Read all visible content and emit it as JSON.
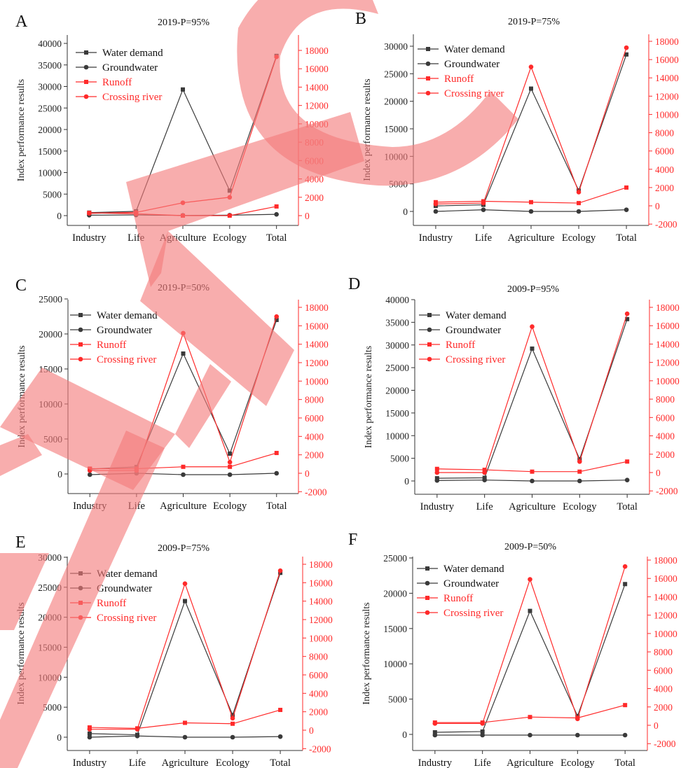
{
  "figure": {
    "y_left_label": "Index performance results",
    "categories": [
      "Industry",
      "Life",
      "Agriculture",
      "Ecology",
      "Total"
    ],
    "legend": [
      "Water demand",
      "Groundwater",
      "Runoff",
      "Crossing river"
    ],
    "colors": {
      "left_axis": "#333333",
      "right_axis": "#ff2a2a",
      "left_series": "#3a3a3a",
      "right_series": "#ff2a2a"
    }
  },
  "watermark": {
    "text": "RET",
    "color": "#f47a7a"
  },
  "chart_data": [
    {
      "panel_letter": "A",
      "title": "2019-P=95%",
      "type": "line",
      "categories": [
        "Industry",
        "Life",
        "Agriculture",
        "Ecology",
        "Total"
      ],
      "ylim_left": [
        0,
        40000
      ],
      "yticks_left": [
        0,
        5000,
        10000,
        15000,
        20000,
        25000,
        30000,
        35000,
        40000
      ],
      "ylim_right": [
        0,
        18000
      ],
      "yticks_right": [
        0,
        2000,
        4000,
        6000,
        8000,
        10000,
        12000,
        14000,
        16000,
        18000
      ],
      "series": [
        {
          "name": "Water demand",
          "axis": "left",
          "marker": "square",
          "values": [
            700,
            1000,
            29300,
            5800,
            37100
          ]
        },
        {
          "name": "Groundwater",
          "axis": "left",
          "marker": "circle",
          "values": [
            100,
            150,
            50,
            100,
            300
          ]
        },
        {
          "name": "Runoff",
          "axis": "right",
          "marker": "square",
          "values": [
            300,
            200,
            0,
            0,
            1000
          ]
        },
        {
          "name": "Crossing river",
          "axis": "right",
          "marker": "circle",
          "values": [
            250,
            350,
            1400,
            2000,
            17300
          ]
        }
      ]
    },
    {
      "panel_letter": "B",
      "title": "2019-P=75%",
      "type": "line",
      "categories": [
        "Industry",
        "Life",
        "Agriculture",
        "Ecology",
        "Total"
      ],
      "ylim_left": [
        -2000,
        30000
      ],
      "yticks_left": [
        0,
        5000,
        10000,
        15000,
        20000,
        25000,
        30000
      ],
      "ylim_right": [
        -2000,
        18000
      ],
      "yticks_right": [
        -2000,
        0,
        2000,
        4000,
        6000,
        8000,
        10000,
        12000,
        14000,
        16000,
        18000
      ],
      "series": [
        {
          "name": "Water demand",
          "axis": "left",
          "marker": "square",
          "values": [
            1000,
            1200,
            22300,
            3800,
            28500
          ]
        },
        {
          "name": "Groundwater",
          "axis": "left",
          "marker": "circle",
          "values": [
            0,
            300,
            0,
            0,
            300
          ]
        },
        {
          "name": "Runoff",
          "axis": "right",
          "marker": "square",
          "values": [
            400,
            500,
            400,
            300,
            2000
          ]
        },
        {
          "name": "Crossing river",
          "axis": "right",
          "marker": "circle",
          "values": [
            200,
            300,
            15200,
            1500,
            17300
          ]
        }
      ]
    },
    {
      "panel_letter": "C",
      "title": "2019-P=50%",
      "type": "line",
      "categories": [
        "Industry",
        "Life",
        "Agriculture",
        "Ecology",
        "Total"
      ],
      "ylim_left": [
        -2500,
        25000
      ],
      "yticks_left": [
        0,
        5000,
        10000,
        15000,
        20000,
        25000
      ],
      "ylim_right": [
        -2000,
        18000
      ],
      "yticks_right": [
        -2000,
        0,
        2000,
        4000,
        6000,
        8000,
        10000,
        12000,
        14000,
        16000,
        18000
      ],
      "series": [
        {
          "name": "Water demand",
          "axis": "left",
          "marker": "square",
          "values": [
            700,
            1000,
            17200,
            2900,
            22000
          ]
        },
        {
          "name": "Groundwater",
          "axis": "left",
          "marker": "circle",
          "values": [
            -100,
            100,
            -100,
            -100,
            100
          ]
        },
        {
          "name": "Runoff",
          "axis": "right",
          "marker": "square",
          "values": [
            500,
            500,
            700,
            700,
            2200
          ]
        },
        {
          "name": "Crossing river",
          "axis": "right",
          "marker": "circle",
          "values": [
            300,
            300,
            15200,
            1200,
            17000
          ]
        }
      ]
    },
    {
      "panel_letter": "D",
      "title": "2009-P=95%",
      "type": "line",
      "categories": [
        "Industry",
        "Life",
        "Agriculture",
        "Ecology",
        "Total"
      ],
      "ylim_left": [
        -2000,
        40000
      ],
      "yticks_left": [
        0,
        5000,
        10000,
        15000,
        20000,
        25000,
        30000,
        35000,
        40000
      ],
      "ylim_right": [
        -2000,
        18000
      ],
      "yticks_right": [
        -2000,
        0,
        2000,
        4000,
        6000,
        8000,
        10000,
        12000,
        14000,
        16000,
        18000
      ],
      "series": [
        {
          "name": "Water demand",
          "axis": "left",
          "marker": "square",
          "values": [
            600,
            700,
            29200,
            4800,
            35700
          ]
        },
        {
          "name": "Groundwater",
          "axis": "left",
          "marker": "circle",
          "values": [
            100,
            200,
            0,
            0,
            200
          ]
        },
        {
          "name": "Runoff",
          "axis": "right",
          "marker": "square",
          "values": [
            400,
            300,
            100,
            100,
            1200
          ]
        },
        {
          "name": "Crossing river",
          "axis": "right",
          "marker": "circle",
          "values": [
            0,
            0,
            15900,
            1200,
            17300
          ]
        }
      ]
    },
    {
      "panel_letter": "E",
      "title": "2009-P=75%",
      "type": "line",
      "categories": [
        "Industry",
        "Life",
        "Agriculture",
        "Ecology",
        "Total"
      ],
      "ylim_left": [
        -2000,
        30000
      ],
      "yticks_left": [
        0,
        5000,
        10000,
        15000,
        20000,
        25000,
        30000
      ],
      "ylim_right": [
        -2000,
        18000
      ],
      "yticks_right": [
        -2000,
        0,
        2000,
        4000,
        6000,
        8000,
        10000,
        12000,
        14000,
        16000,
        18000
      ],
      "series": [
        {
          "name": "Water demand",
          "axis": "left",
          "marker": "square",
          "values": [
            600,
            400,
            22700,
            3700,
            27400
          ]
        },
        {
          "name": "Groundwater",
          "axis": "left",
          "marker": "circle",
          "values": [
            0,
            200,
            0,
            0,
            100
          ]
        },
        {
          "name": "Runoff",
          "axis": "right",
          "marker": "square",
          "values": [
            300,
            200,
            800,
            700,
            2200
          ]
        },
        {
          "name": "Crossing river",
          "axis": "right",
          "marker": "circle",
          "values": [
            100,
            100,
            15900,
            1300,
            17300
          ]
        }
      ]
    },
    {
      "panel_letter": "F",
      "title": "2009-P=50%",
      "type": "line",
      "categories": [
        "Industry",
        "Life",
        "Agriculture",
        "Ecology",
        "Total"
      ],
      "ylim_left": [
        -2500,
        25000
      ],
      "yticks_left": [
        0,
        5000,
        10000,
        15000,
        20000,
        25000
      ],
      "ylim_right": [
        -2000,
        18000
      ],
      "yticks_right": [
        -2000,
        0,
        2000,
        4000,
        6000,
        8000,
        10000,
        12000,
        14000,
        16000,
        18000
      ],
      "series": [
        {
          "name": "Water demand",
          "axis": "left",
          "marker": "square",
          "values": [
            300,
            400,
            17500,
            2600,
            21300
          ]
        },
        {
          "name": "Groundwater",
          "axis": "left",
          "marker": "circle",
          "values": [
            -100,
            -100,
            -100,
            -100,
            -100
          ]
        },
        {
          "name": "Runoff",
          "axis": "right",
          "marker": "square",
          "values": [
            300,
            300,
            900,
            800,
            2200
          ]
        },
        {
          "name": "Crossing river",
          "axis": "right",
          "marker": "circle",
          "values": [
            200,
            200,
            15900,
            700,
            17300
          ]
        }
      ]
    }
  ]
}
